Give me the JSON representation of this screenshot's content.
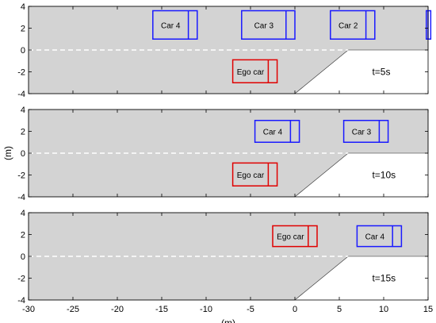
{
  "chart_data": [
    {
      "type": "area",
      "panel": 1,
      "xlim": [
        -30,
        15
      ],
      "ylim": [
        -4,
        4
      ],
      "yticks": [
        -4,
        -2,
        0,
        2,
        4
      ],
      "xticks": [
        -30,
        -25,
        -20,
        -15,
        -10,
        -5,
        0,
        5,
        10,
        15
      ],
      "show_xticks": false,
      "road_polygon": [
        [
          -30,
          4
        ],
        [
          15,
          4
        ],
        [
          15,
          0
        ],
        [
          6,
          0
        ],
        [
          0,
          -4
        ],
        [
          -30,
          -4
        ]
      ],
      "lane_divider_y": 0,
      "annotation": "t=5s",
      "cars": [
        {
          "label": "Car 4",
          "x": [
            -16,
            -11
          ],
          "y": [
            1,
            3.6
          ],
          "marker_x": -12,
          "color": "#1a1aff"
        },
        {
          "label": "Car 3",
          "x": [
            -6,
            0
          ],
          "y": [
            1,
            3.6
          ],
          "marker_x": -1,
          "color": "#1a1aff"
        },
        {
          "label": "Car 2",
          "x": [
            4,
            9
          ],
          "y": [
            1,
            3.6
          ],
          "marker_x": 8,
          "color": "#1a1aff"
        },
        {
          "label": "",
          "x": [
            14.8,
            15.3
          ],
          "y": [
            1,
            3.6
          ],
          "marker_x": 15,
          "color": "#1a1aff"
        },
        {
          "label": "Ego car",
          "x": [
            -7,
            -2
          ],
          "y": [
            -3,
            -0.9
          ],
          "marker_x": -3,
          "color": "#e00000"
        }
      ]
    },
    {
      "type": "area",
      "panel": 2,
      "xlim": [
        -30,
        15
      ],
      "ylim": [
        -4,
        4
      ],
      "yticks": [
        -4,
        -2,
        0,
        2,
        4
      ],
      "xticks": [
        -30,
        -25,
        -20,
        -15,
        -10,
        -5,
        0,
        5,
        10,
        15
      ],
      "show_xticks": false,
      "road_polygon": [
        [
          -30,
          4
        ],
        [
          15,
          4
        ],
        [
          15,
          0
        ],
        [
          6,
          0
        ],
        [
          0,
          -4
        ],
        [
          -30,
          -4
        ]
      ],
      "lane_divider_y": 0,
      "annotation": "t=10s",
      "ylabel": "(m)",
      "cars": [
        {
          "label": "Car 4",
          "x": [
            -4.5,
            0.5
          ],
          "y": [
            1,
            3
          ],
          "marker_x": -0.5,
          "color": "#1a1aff"
        },
        {
          "label": "Car 3",
          "x": [
            5.5,
            10.5
          ],
          "y": [
            1,
            3
          ],
          "marker_x": 9.5,
          "color": "#1a1aff"
        },
        {
          "label": "Ego car",
          "x": [
            -7,
            -2
          ],
          "y": [
            -3,
            -0.9
          ],
          "marker_x": -3,
          "color": "#e00000"
        }
      ]
    },
    {
      "type": "area",
      "panel": 3,
      "xlim": [
        -30,
        15
      ],
      "ylim": [
        -4,
        4
      ],
      "yticks": [
        -4,
        -2,
        0,
        2,
        4
      ],
      "xticks": [
        -30,
        -25,
        -20,
        -15,
        -10,
        -5,
        0,
        5,
        10,
        15
      ],
      "show_xticks": true,
      "road_polygon": [
        [
          -30,
          4
        ],
        [
          15,
          4
        ],
        [
          15,
          0
        ],
        [
          6,
          0
        ],
        [
          0,
          -4
        ],
        [
          -30,
          -4
        ]
      ],
      "lane_divider_y": 0,
      "annotation": "t=15s",
      "xlabel": "(m)",
      "cars": [
        {
          "label": "Ego car",
          "x": [
            -2.5,
            2.5
          ],
          "y": [
            0.9,
            2.8
          ],
          "marker_x": 1.5,
          "color": "#e00000"
        },
        {
          "label": "Car 4",
          "x": [
            7,
            12
          ],
          "y": [
            0.9,
            2.8
          ],
          "marker_x": 11,
          "color": "#1a1aff"
        }
      ]
    }
  ]
}
